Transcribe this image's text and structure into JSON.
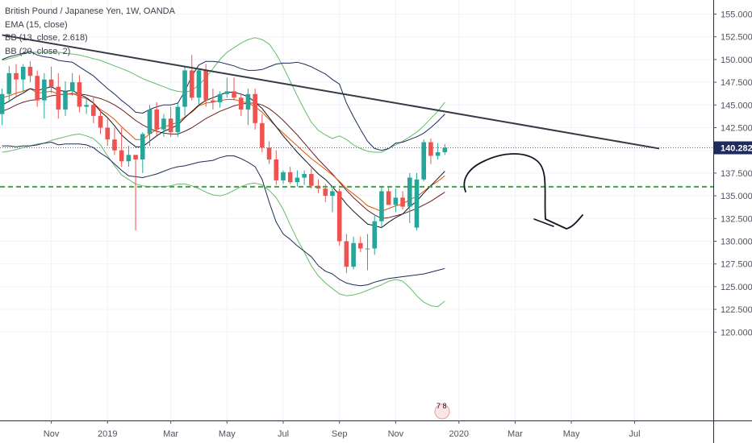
{
  "legend": {
    "symbol": "British Pound / Japanese Yen, 1W, OANDA",
    "ema": "EMA (15, close)",
    "bb1": "BB (13, close, 2.618)",
    "bb2": "BB (20, close, 2)"
  },
  "colors": {
    "up": "#26a69a",
    "down": "#ef5350",
    "ema": "#e65100",
    "bb1": "#1e2b5c",
    "bb2": "#66bb6a",
    "bb1_mid": "#6d1f1f",
    "trendline": "#363a45",
    "support": "#43a047",
    "price_tag": "#1e2b5c"
  },
  "chart_data": {
    "type": "candlestick",
    "title": "British Pound / Japanese Yen, 1W, OANDA",
    "ylim": [
      119.5,
      156.2
    ],
    "price_ticks": [
      "155.000",
      "152.500",
      "150.000",
      "147.500",
      "145.000",
      "142.500",
      "140.000",
      "137.500",
      "135.000",
      "132.500",
      "130.000",
      "127.500",
      "125.000",
      "122.500",
      "120.000"
    ],
    "time_ticks": [
      {
        "label": "Nov",
        "week": 7
      },
      {
        "label": "2019",
        "week": 15
      },
      {
        "label": "Mar",
        "week": 24
      },
      {
        "label": "May",
        "week": 32
      },
      {
        "label": "Jul",
        "week": 40
      },
      {
        "label": "Sep",
        "week": 48
      },
      {
        "label": "Nov",
        "week": 56
      },
      {
        "label": "2020",
        "week": 65
      },
      {
        "label": "Mar",
        "week": 73
      },
      {
        "label": "May",
        "week": 81
      },
      {
        "label": "Jul",
        "week": 90
      }
    ],
    "last_price": "140.282",
    "candles": [
      [
        144,
        146.8,
        142.8,
        146.2
      ],
      [
        146.2,
        149.3,
        145.3,
        148.5
      ],
      [
        148.5,
        149.5,
        146,
        147.8
      ],
      [
        147.8,
        149.5,
        146.5,
        149.2
      ],
      [
        149.2,
        149.8,
        147.5,
        148.2
      ],
      [
        148.2,
        148.8,
        144.8,
        145.5
      ],
      [
        145.5,
        148.5,
        143.5,
        147.8
      ],
      [
        147.8,
        149.2,
        146.3,
        147
      ],
      [
        147,
        148.5,
        143.5,
        144.5
      ],
      [
        144.5,
        147.6,
        143.8,
        146.5
      ],
      [
        146.5,
        148.5,
        146,
        147.5
      ],
      [
        147.5,
        148.3,
        144.2,
        144.8
      ],
      [
        144.8,
        145.8,
        144,
        145
      ],
      [
        145,
        145.8,
        143,
        143.8
      ],
      [
        143.8,
        144.5,
        141.8,
        142.5
      ],
      [
        142.5,
        143.5,
        140.5,
        141.2
      ],
      [
        141.2,
        142.5,
        139.5,
        140
      ],
      [
        140,
        142.5,
        138.2,
        138.8
      ],
      [
        138.8,
        140.5,
        138.2,
        139.5
      ],
      [
        139.5,
        139.5,
        131.2,
        139
      ],
      [
        139,
        142,
        137.5,
        141.8
      ],
      [
        141.8,
        145,
        140.5,
        144.5
      ],
      [
        144.5,
        145.3,
        141.7,
        142.3
      ],
      [
        142.3,
        144,
        141.5,
        143.5
      ],
      [
        143.5,
        144.8,
        141.5,
        142
      ],
      [
        142,
        145.2,
        141.5,
        144.8
      ],
      [
        144.8,
        149.2,
        143.8,
        148.8
      ],
      [
        148.8,
        150.5,
        145.5,
        145.8
      ],
      [
        145.8,
        149,
        145,
        148.8
      ],
      [
        148.8,
        149.5,
        144.8,
        145.5
      ],
      [
        145.5,
        146.8,
        144.5,
        145.3
      ],
      [
        145.3,
        146.5,
        144.7,
        146.2
      ],
      [
        146.2,
        148,
        145.8,
        146.5
      ],
      [
        146.5,
        148,
        145.5,
        145.8
      ],
      [
        145.8,
        146.2,
        143.8,
        144.5
      ],
      [
        144.5,
        146.8,
        142.8,
        146.2
      ],
      [
        146.2,
        146.8,
        142.3,
        143
      ],
      [
        143,
        144,
        139.8,
        140.3
      ],
      [
        140.3,
        141,
        138.5,
        139
      ],
      [
        139,
        140,
        136.2,
        136.7
      ],
      [
        136.7,
        137.8,
        136.3,
        137.6
      ],
      [
        137.6,
        138.2,
        136.3,
        136.5
      ],
      [
        136.5,
        137.8,
        136,
        137
      ],
      [
        137,
        137.8,
        136.2,
        137.4
      ],
      [
        137.4,
        138,
        135.8,
        136.1
      ],
      [
        136.1,
        136.8,
        135.3,
        135.8
      ],
      [
        135.8,
        136.3,
        134.3,
        135
      ],
      [
        135,
        135.8,
        133.2,
        135.5
      ],
      [
        135.5,
        135.8,
        129.5,
        130
      ],
      [
        130,
        130.8,
        126.5,
        127.2
      ],
      [
        127.2,
        130.5,
        126.9,
        129.8
      ],
      [
        129.8,
        130.5,
        128.8,
        129.2
      ],
      [
        129.2,
        130.8,
        126.8,
        129.2
      ],
      [
        129.2,
        132.8,
        128.5,
        132.2
      ],
      [
        132.2,
        136,
        131.5,
        135.5
      ],
      [
        135.5,
        136,
        134,
        134
      ],
      [
        134,
        135.8,
        133.2,
        134.8
      ],
      [
        134.8,
        135.5,
        133.5,
        133.8
      ],
      [
        133.8,
        137.5,
        132,
        137
      ],
      [
        131.5,
        137.5,
        131.2,
        136.8
      ],
      [
        136.8,
        141.2,
        136.6,
        140.9
      ],
      [
        140.9,
        141.3,
        138.5,
        139.4
      ],
      [
        139.4,
        140.8,
        139,
        139.8
      ],
      [
        139.8,
        140.7,
        139.5,
        140.3
      ]
    ],
    "ema15": [
      145.8,
      146,
      146.3,
      146.5,
      146.8,
      146.3,
      146.4,
      146.5,
      146.2,
      146.1,
      146.3,
      145.9,
      145.7,
      145.2,
      144.5,
      144,
      143.4,
      142.6,
      141.9,
      141.2,
      141.2,
      141.8,
      142.3,
      142.6,
      142.8,
      143.1,
      143.7,
      144.2,
      144.9,
      145.2,
      145.3,
      145.5,
      145.6,
      145.6,
      145.4,
      145.2,
      144.8,
      144.2,
      143.4,
      142.6,
      141.9,
      141.2,
      140.5,
      139.8,
      139.1,
      138.5,
      137.9,
      137.3,
      136.6,
      135.8,
      135.2,
      134.6,
      133.9,
      133.6,
      133.3,
      133.6,
      133.9,
      134.1,
      134.6,
      134.9,
      135.5,
      136.1,
      136.6,
      137.2
    ],
    "bb1_mid": [
      145,
      145.4,
      145.9,
      146.3,
      146.8,
      146.6,
      146.8,
      147,
      146.6,
      146.5,
      146.6,
      146.2,
      145.8,
      145.2,
      144.3,
      143.6,
      142.7,
      141.7,
      141,
      140.4,
      140.4,
      141,
      141.6,
      142.1,
      142.4,
      142.8,
      143.6,
      144.3,
      145,
      145.5,
      145.8,
      146.1,
      146.4,
      146.4,
      146.2,
      145.9,
      145.3,
      144.6,
      143.6,
      142.6,
      141.6,
      140.7,
      139.8,
      139,
      138.2,
      137.4,
      136.8,
      136,
      135.1,
      134.1,
      133.3,
      132.6,
      131.9,
      131.7,
      131.5,
      132.1,
      132.6,
      133,
      133.8,
      134.4,
      135.3,
      136.1,
      136.9,
      137.7
    ],
    "bb1_up": [
      150,
      150.3,
      150.5,
      150.7,
      150.9,
      150.5,
      150.3,
      150.2,
      149.9,
      149.8,
      149.7,
      149.2,
      148.7,
      148.2,
      147.5,
      146.8,
      146.2,
      145.5,
      144.9,
      144.2,
      144.1,
      144.5,
      144.8,
      145,
      145,
      145.2,
      146.5,
      148.2,
      149.4,
      149.8,
      149.8,
      149.7,
      149.5,
      149.3,
      149,
      148.8,
      148.8,
      148.9,
      149.2,
      149.5,
      149.6,
      149.6,
      149.7,
      149.5,
      149.2,
      148.8,
      148.4,
      147.8,
      147.3,
      145.2,
      143.7,
      142.3,
      141,
      140.2,
      140,
      140.2,
      140.8,
      140.9,
      141.2,
      141.5,
      141.9,
      142.5,
      143.2,
      144
    ],
    "bb1_lo": [
      140.5,
      140.5,
      140.4,
      140.5,
      140.5,
      140.6,
      140.8,
      140.9,
      140.6,
      140.7,
      140.7,
      140.7,
      140.6,
      140.3,
      139.7,
      139.2,
      138.5,
      137.8,
      137.2,
      137.1,
      137,
      137.2,
      137.4,
      137.7,
      138,
      138.2,
      138.3,
      138.5,
      138.7,
      138.8,
      138.9,
      139.2,
      139.4,
      139.4,
      139.1,
      138.7,
      138.2,
      136.8,
      134.3,
      132.1,
      130.8,
      130.2,
      129.5,
      128.9,
      128.3,
      127.3,
      126.7,
      126.4,
      125.8,
      125.4,
      125.2,
      125.1,
      125.2,
      125.5,
      125.7,
      125.9,
      126,
      126.1,
      126.2,
      126.3,
      126.4,
      126.6,
      126.8,
      127
    ],
    "bb2_mid": [
      144.3,
      144.6,
      145,
      145.3,
      145.5,
      145.6,
      145.8,
      146,
      146.1,
      146.2,
      146.2,
      146.2,
      146.1,
      145.9,
      145.7,
      145.4,
      145,
      144.5,
      143.9,
      143.3,
      142.8,
      142.4,
      142.1,
      141.9,
      141.8,
      141.8,
      142.1,
      142.5,
      143,
      143.5,
      143.9,
      144.3,
      144.6,
      144.9,
      145.1,
      145.2,
      145.2,
      145,
      144.6,
      144,
      143.3,
      142.5,
      141.7,
      140.8,
      139.9,
      139,
      138.2,
      137.4,
      136.5,
      135.6,
      134.8,
      134.1,
      133.4,
      132.9,
      132.5,
      132.6,
      132.8,
      133,
      133.3,
      133.6,
      134,
      134.4,
      134.9,
      135.4
    ],
    "bb2_up": [
      149.9,
      150.1,
      150.3,
      150.6,
      150.8,
      150.8,
      150.8,
      150.8,
      150.8,
      150.7,
      150.6,
      150.5,
      150.3,
      150.1,
      149.9,
      149.6,
      149.3,
      149,
      148.7,
      148.3,
      147.9,
      147.6,
      147.3,
      147,
      146.7,
      146.5,
      146.4,
      146.6,
      147.2,
      148,
      149,
      150,
      150.8,
      151.3,
      151.8,
      152.2,
      152.4,
      152.2,
      151.7,
      150.6,
      149.2,
      147.6,
      146,
      144.5,
      143.1,
      142.2,
      141.7,
      141.3,
      141.6,
      141.2,
      140.6,
      140.2,
      139.9,
      139.8,
      139.8,
      140.2,
      140.6,
      141,
      141.5,
      142,
      142.7,
      143.5,
      144.3,
      145.3
    ],
    "bb2_lo": [
      139.8,
      139.9,
      140.1,
      140.3,
      140.5,
      140.7,
      140.8,
      141.1,
      141.3,
      141.5,
      141.7,
      141.8,
      141.6,
      141.3,
      140.6,
      139.4,
      138.3,
      137.3,
      136.8,
      136.3,
      136.1,
      136,
      136,
      136,
      136.1,
      136.3,
      136.3,
      136.1,
      135.8,
      135.4,
      135.1,
      135,
      135.2,
      135.6,
      136,
      136.3,
      136.4,
      136.2,
      135.6,
      134.8,
      133.5,
      131.8,
      130.2,
      128.8,
      127.3,
      126.2,
      125.4,
      124.8,
      124.2,
      124,
      124.1,
      124.3,
      124.6,
      124.9,
      125.2,
      125.6,
      125.8,
      125.6,
      124.9,
      124,
      123.3,
      122.9,
      122.8,
      123.4
    ],
    "trendline": {
      "from": {
        "week": 0,
        "price": 152.7
      },
      "to": {
        "week": 93.5,
        "price": 140.2
      }
    },
    "support_level": 136,
    "session_marker": "7 8"
  }
}
